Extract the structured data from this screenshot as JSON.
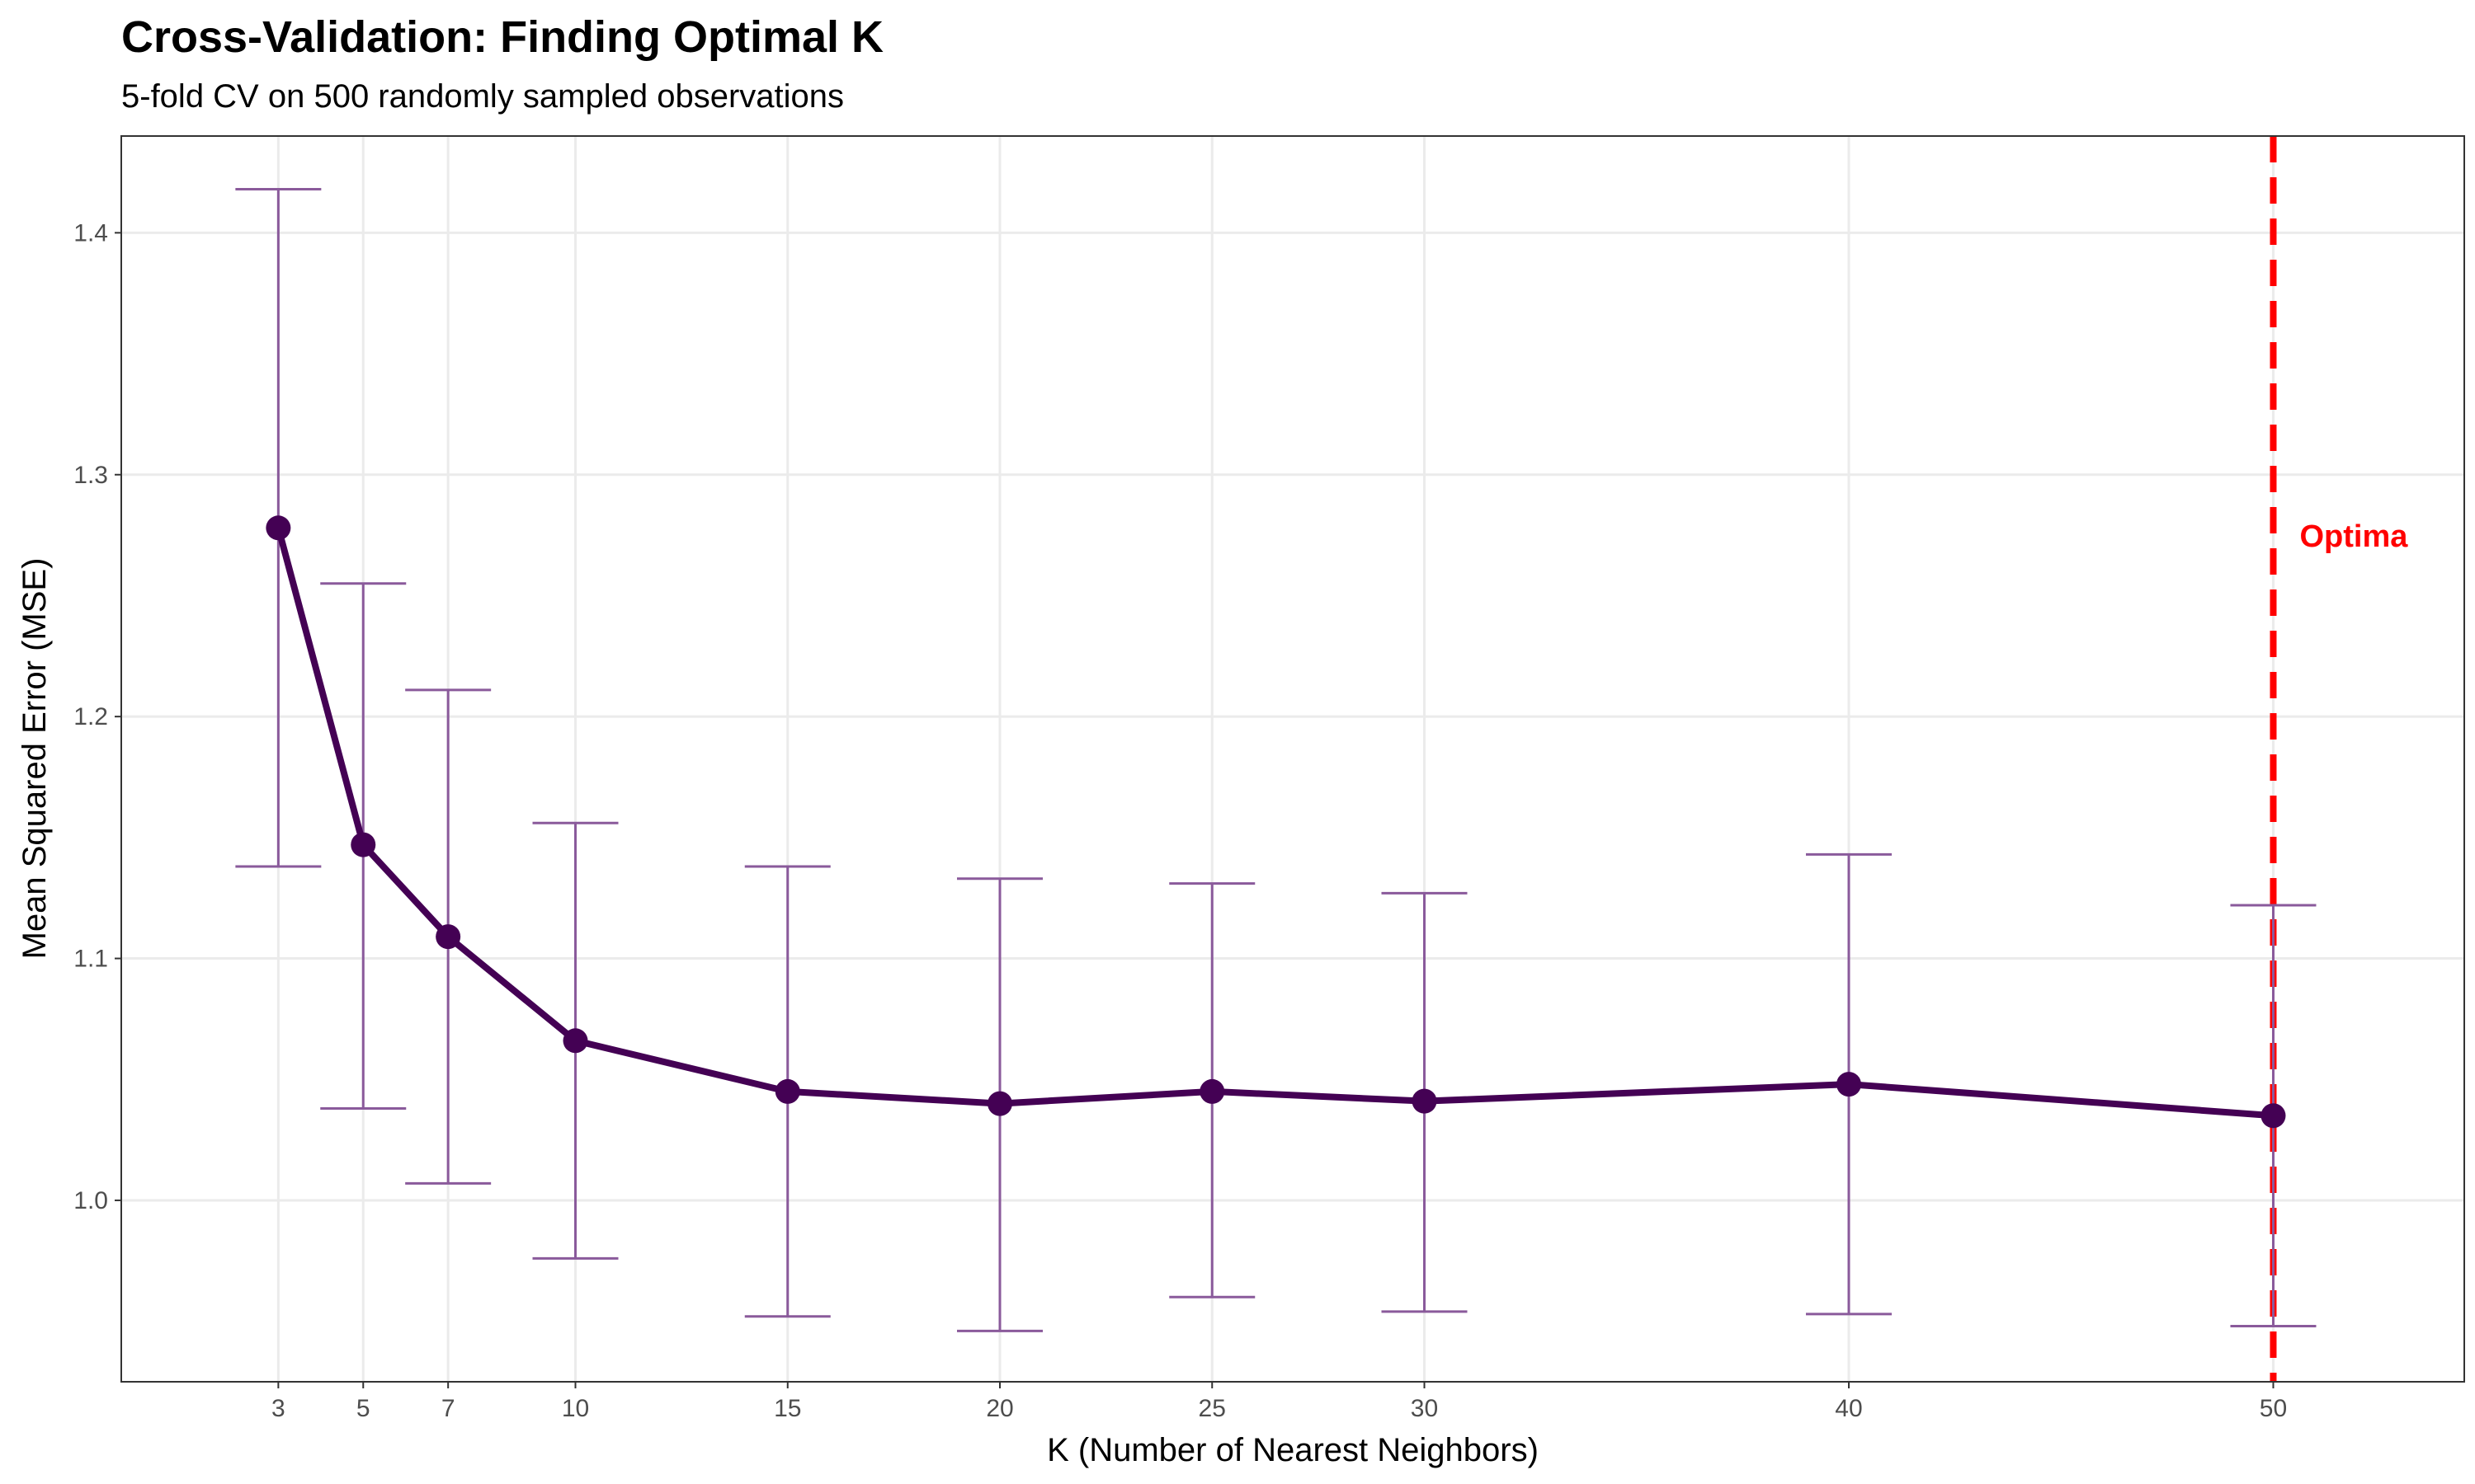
{
  "chart_data": {
    "type": "line",
    "title": "Cross-Validation: Finding Optimal K",
    "subtitle": "5-fold CV on 500 randomly sampled observations",
    "xlabel": "K (Number of Nearest Neighbors)",
    "ylabel": "Mean Squared Error (MSE)",
    "x": [
      3,
      5,
      7,
      10,
      15,
      20,
      25,
      30,
      40,
      50
    ],
    "x_ticks": [
      "3",
      "5",
      "7",
      "10",
      "15",
      "20",
      "25",
      "30",
      "40",
      "50"
    ],
    "y_ticks": [
      "1.0",
      "1.1",
      "1.2",
      "1.3",
      "1.4"
    ],
    "series": [
      {
        "values": [
          1.278,
          1.147,
          1.109,
          1.066,
          1.045,
          1.04,
          1.045,
          1.041,
          1.048,
          1.035
        ],
        "error_lower": [
          1.138,
          1.038,
          1.007,
          0.976,
          0.952,
          0.946,
          0.96,
          0.954,
          0.953,
          0.948
        ],
        "error_upper": [
          1.418,
          1.255,
          1.211,
          1.156,
          1.138,
          1.133,
          1.131,
          1.127,
          1.143,
          1.122
        ]
      }
    ],
    "xlim": [
      -0.7,
      54.5
    ],
    "ylim": [
      0.925,
      1.44
    ],
    "grid": true,
    "legend": "none",
    "reference_line": {
      "x": 50,
      "style": "dashed"
    },
    "annotation": {
      "text": "Optima",
      "x": 50,
      "y": 1.275
    },
    "colors": {
      "line": "#440154",
      "errorbar": "#8a5a9b",
      "reference": "#ff0000",
      "grid": "#ebebeb",
      "panel_border": "#333333"
    }
  }
}
